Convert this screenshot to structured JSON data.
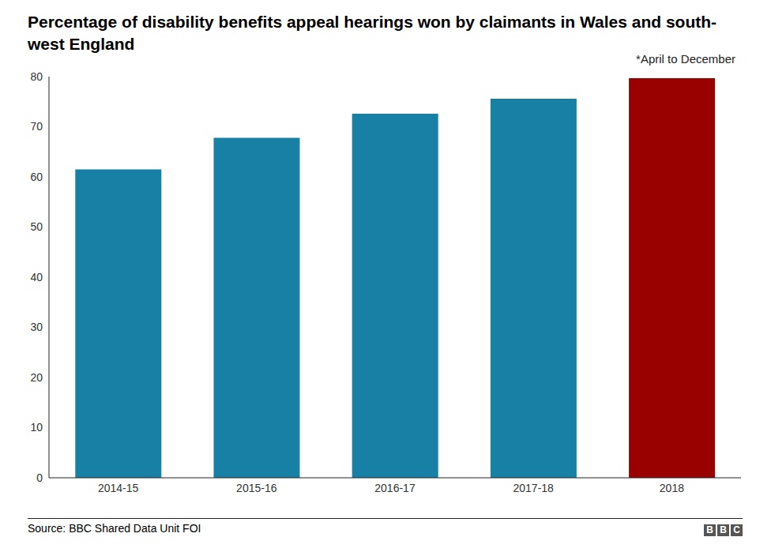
{
  "chart_data": {
    "type": "bar",
    "title": "Percentage of disability benefits appeal hearings won by claimants in Wales and south-west England",
    "annotation": "*April to December",
    "source": "Source: BBC Shared Data Unit FOI",
    "logo": "BBC",
    "categories": [
      "2014-15",
      "2015-16",
      "2016-17",
      "2017-18",
      "2018"
    ],
    "values": [
      61.5,
      67.8,
      72.6,
      75.6,
      79.7
    ],
    "colors": [
      "#1880a4",
      "#1880a4",
      "#1880a4",
      "#1880a4",
      "#990000"
    ],
    "ylim": [
      0,
      80
    ],
    "yticks": [
      0,
      10,
      20,
      30,
      40,
      50,
      60,
      70,
      80
    ],
    "grid": false
  }
}
